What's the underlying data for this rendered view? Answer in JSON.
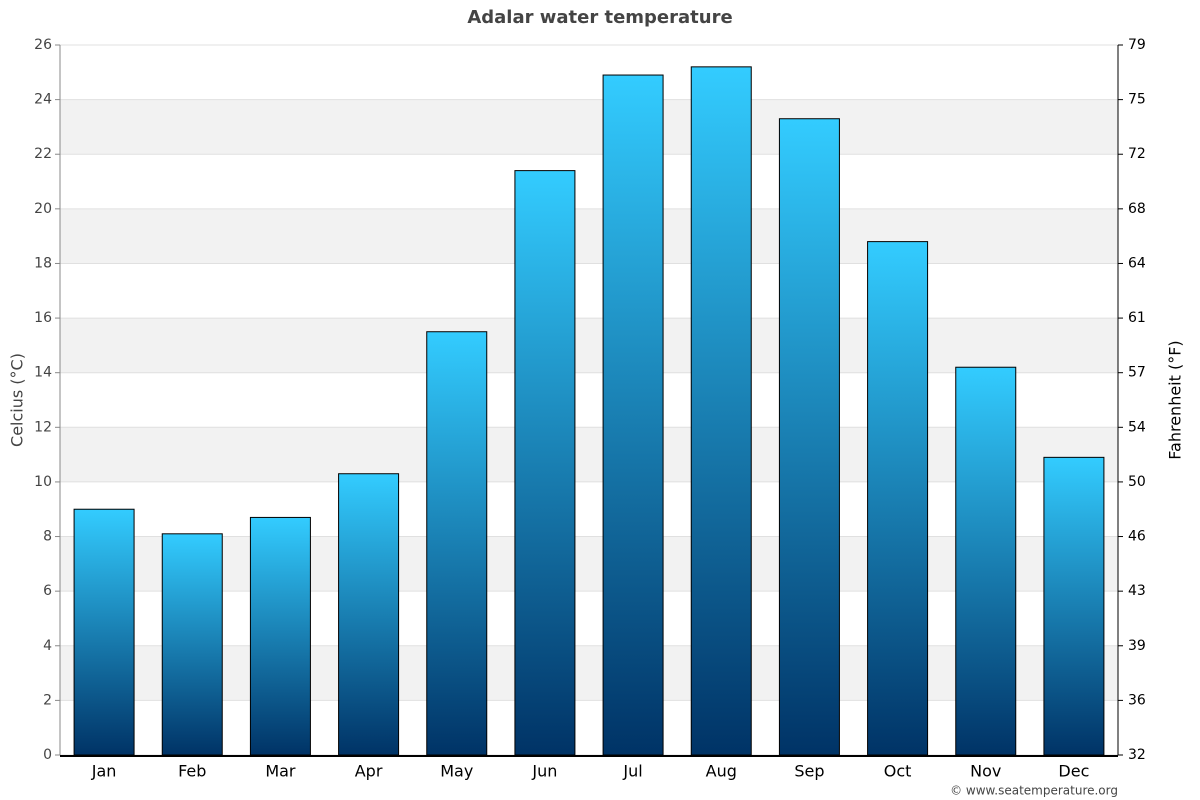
{
  "chart_data": {
    "type": "bar",
    "title": "Adalar water temperature",
    "y_label": "Celcius (°C)",
    "y2_label": "Fahrenheit (°F)",
    "credit": "© www.seatemperature.org",
    "categories": [
      "Jan",
      "Feb",
      "Mar",
      "Apr",
      "May",
      "Jun",
      "Jul",
      "Aug",
      "Sep",
      "Oct",
      "Nov",
      "Dec"
    ],
    "values": [
      9.0,
      8.1,
      8.7,
      10.3,
      15.5,
      21.4,
      24.9,
      25.2,
      23.3,
      18.8,
      14.2,
      10.9
    ],
    "gradient": {
      "top": "#33ccff",
      "bottom": "#003366"
    },
    "ylim": [
      0,
      26
    ],
    "yticks": [
      0,
      2,
      4,
      6,
      8,
      10,
      12,
      14,
      16,
      18,
      20,
      22,
      24,
      26
    ],
    "y2lim": [
      32,
      78.8
    ],
    "y2ticks": [
      32,
      {
        "value": 35.6,
        "label": "36"
      },
      {
        "value": 39.2,
        "label": "39"
      },
      {
        "value": 42.8,
        "label": "43"
      },
      {
        "value": 46.4,
        "label": "46"
      },
      50,
      {
        "value": 53.6,
        "label": "54"
      },
      {
        "value": 57.2,
        "label": "57"
      },
      {
        "value": 60.8,
        "label": "61"
      },
      {
        "value": 64.4,
        "label": "64"
      },
      68,
      {
        "value": 71.6,
        "label": "72"
      },
      {
        "value": 75.2,
        "label": "75"
      },
      {
        "value": 78.8,
        "label": "79"
      }
    ],
    "grid": true
  }
}
